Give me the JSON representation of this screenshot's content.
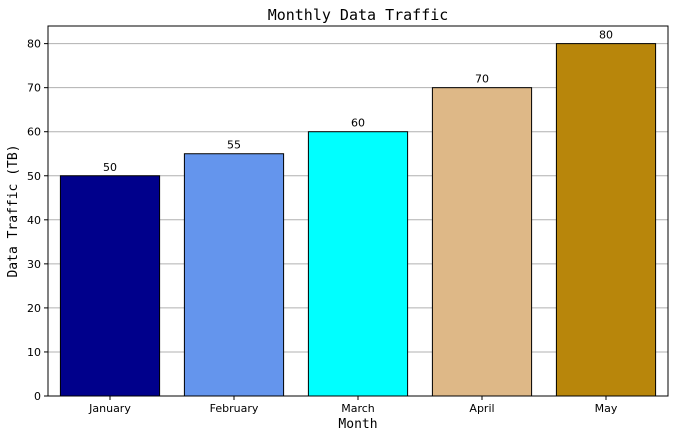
{
  "chart_data": {
    "type": "bar",
    "title": "Monthly Data Traffic",
    "xlabel": "Month",
    "ylabel": "Data Traffic (TB)",
    "categories": [
      "January",
      "February",
      "March",
      "April",
      "May"
    ],
    "values": [
      50,
      55,
      60,
      70,
      80
    ],
    "data_labels": [
      "50",
      "55",
      "60",
      "70",
      "80"
    ],
    "colors": [
      "#00008b",
      "#6495ed",
      "#00ffff",
      "#deb887",
      "#b8860b"
    ],
    "ylim": [
      0,
      84
    ],
    "yticks": [
      0,
      10,
      20,
      30,
      40,
      50,
      60,
      70,
      80
    ],
    "ytick_labels": [
      "0",
      "10",
      "20",
      "30",
      "40",
      "50",
      "60",
      "70",
      "80"
    ],
    "grid": "y-major",
    "legend": "none"
  }
}
